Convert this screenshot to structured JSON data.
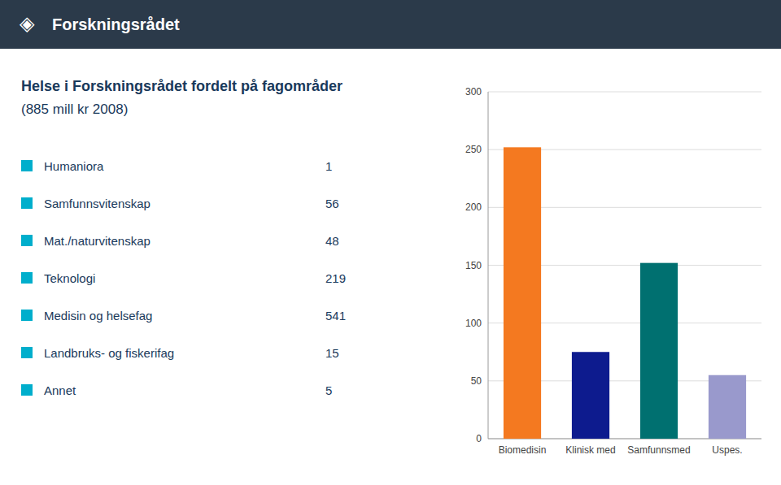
{
  "chart_data": [
    {
      "type": "table",
      "annotations": [
        "◈",
        "Forskningsrådet"
      ],
      "title": "Helse i Forskningsrådet fordelt på fagområder",
      "subtitle": "(885 mill kr 2008)",
      "categories": [
        "Humaniora",
        "Samfunnsvitenskap",
        "Mat./naturvitenskap",
        "Teknologi",
        "Medisin og helsefag",
        "Landbruks- og fiskerifag",
        "Annet"
      ],
      "values": [
        1,
        56,
        48,
        219,
        541,
        15,
        5
      ],
      "color": "#00AECC"
    },
    {
      "type": "bar",
      "categories": [
        "Biomedisin",
        "Klinisk med",
        "Samfunnsmed",
        "Uspes."
      ],
      "values": [
        252,
        75,
        152,
        55
      ],
      "colors": [
        "#F47920",
        "#0D1B8E",
        "#007070",
        "#9999CC"
      ],
      "ylim": [
        0,
        300
      ],
      "yticks": [
        0,
        50,
        100,
        150,
        200,
        250,
        300
      ],
      "grid": true
    }
  ]
}
